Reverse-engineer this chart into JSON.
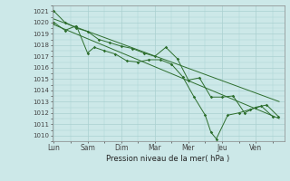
{
  "xlabel": "Pression niveau de la mer( hPa )",
  "bg_color": "#cce8e8",
  "grid_color": "#aad0d0",
  "line_color": "#2d6e2d",
  "ylim": [
    1009.5,
    1021.5
  ],
  "yticks": [
    1010,
    1011,
    1012,
    1013,
    1014,
    1015,
    1016,
    1017,
    1018,
    1019,
    1020,
    1021
  ],
  "day_labels": [
    "Lun",
    "Sam",
    "Dim",
    "Mar",
    "Mer",
    "Jeu",
    "Ven"
  ],
  "day_positions": [
    0,
    1,
    2,
    3,
    4,
    5,
    6
  ],
  "xlim": [
    -0.05,
    6.85
  ],
  "series": [
    {
      "x": [
        0.0,
        0.33,
        0.67,
        1.0,
        1.33,
        1.67,
        2.0,
        2.33,
        2.67,
        3.0,
        3.33,
        3.67,
        4.0,
        4.33,
        4.67,
        5.0,
        5.33,
        5.67,
        6.0,
        6.33,
        6.67
      ],
      "y": [
        1021.0,
        1020.0,
        1019.5,
        1019.2,
        1018.5,
        1018.2,
        1017.9,
        1017.7,
        1017.3,
        1017.0,
        1017.8,
        1016.8,
        1014.9,
        1015.1,
        1013.4,
        1013.4,
        1013.5,
        1012.0,
        1012.5,
        1012.7,
        1011.7
      ],
      "marker": true
    },
    {
      "x": [
        0.0,
        0.33,
        0.67,
        1.0,
        1.2,
        1.5,
        1.83,
        2.17,
        2.5,
        2.83,
        3.17,
        3.5,
        3.83,
        4.17,
        4.5,
        4.67,
        4.83,
        5.17,
        5.5,
        5.83,
        6.17,
        6.5
      ],
      "y": [
        1020.0,
        1019.3,
        1019.7,
        1017.3,
        1017.8,
        1017.5,
        1017.2,
        1016.6,
        1016.5,
        1016.7,
        1016.7,
        1016.3,
        1015.2,
        1013.4,
        1011.8,
        1010.3,
        1009.7,
        1011.8,
        1012.0,
        1012.3,
        1012.6,
        1011.7
      ],
      "marker": true
    },
    {
      "x": [
        0.0,
        6.7
      ],
      "y": [
        1020.3,
        1013.0
      ],
      "marker": false
    },
    {
      "x": [
        0.0,
        6.7
      ],
      "y": [
        1019.8,
        1011.5
      ],
      "marker": false
    }
  ]
}
